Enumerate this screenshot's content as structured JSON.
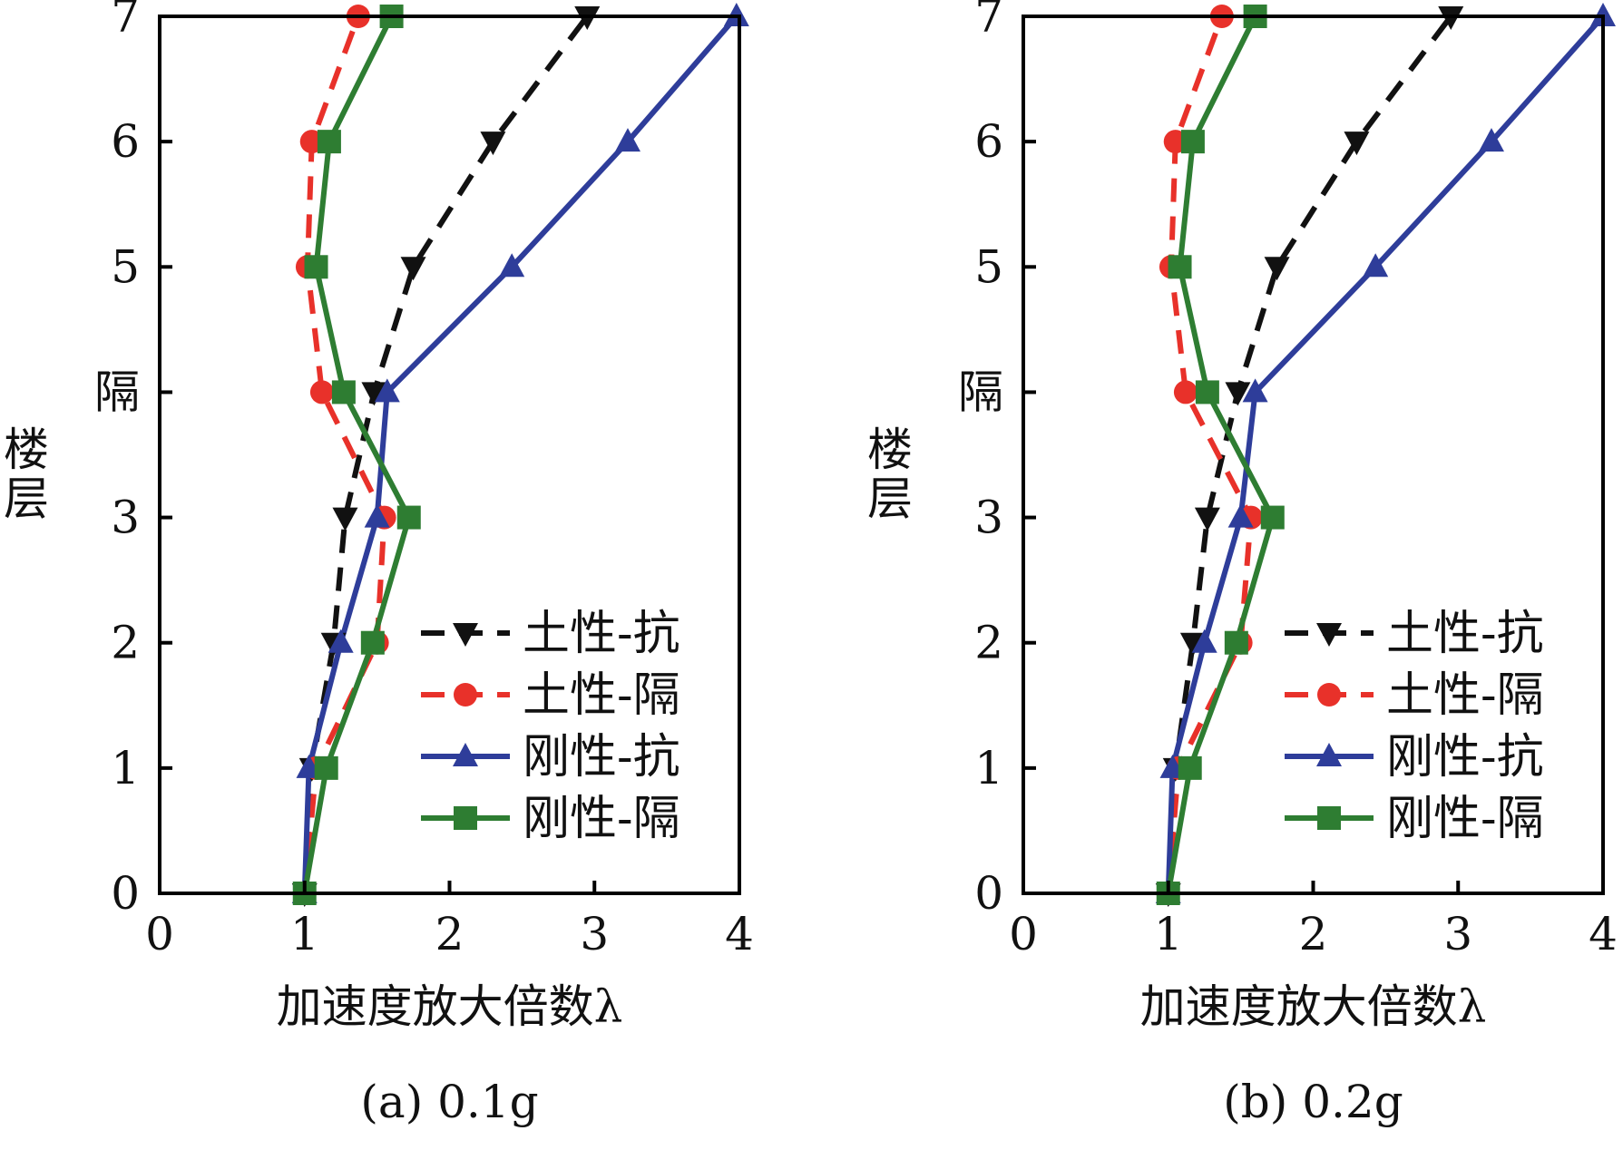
{
  "figure": {
    "captions": [
      "(a) 0.1g",
      "(b) 0.2g"
    ]
  },
  "colors": {
    "soil_fixed": "#111111",
    "soil_isolated": "#e8312a",
    "rigid_fixed": "#2e3d9a",
    "rigid_isolated": "#2e7d32"
  },
  "chart_data": [
    {
      "type": "line",
      "caption": "(a) 0.1g",
      "xlabel": "加速度放大倍数λ",
      "ylabel": "楼层",
      "xlim": [
        0,
        4
      ],
      "ylim": [
        0,
        7
      ],
      "xticks": [
        0,
        1,
        2,
        3,
        4
      ],
      "yticks": [
        0,
        1,
        2,
        3,
        4,
        5,
        6,
        7
      ],
      "ytick_labels": [
        "0",
        "1",
        "2",
        "3",
        "隔",
        "5",
        "6",
        "7"
      ],
      "y": [
        0,
        1,
        2,
        3,
        4,
        5,
        6,
        7
      ],
      "legend_position": "bottom-right",
      "grid": false,
      "series": [
        {
          "name": "土性-抗",
          "marker": "triangle-down",
          "line": "dashed",
          "color": "#111111",
          "x": [
            1.0,
            1.05,
            1.2,
            1.28,
            1.48,
            1.75,
            2.3,
            2.95
          ]
        },
        {
          "name": "土性-隔",
          "marker": "circle",
          "line": "dashed",
          "color": "#e8312a",
          "x": [
            1.0,
            1.08,
            1.5,
            1.55,
            1.12,
            1.02,
            1.05,
            1.37
          ]
        },
        {
          "name": "刚性-抗",
          "marker": "triangle-up",
          "line": "solid",
          "color": "#2e3d9a",
          "x": [
            1.0,
            1.03,
            1.25,
            1.5,
            1.57,
            2.43,
            3.23,
            3.98
          ]
        },
        {
          "name": "刚性-隔",
          "marker": "square",
          "line": "solid",
          "color": "#2e7d32",
          "x": [
            1.0,
            1.15,
            1.47,
            1.72,
            1.27,
            1.08,
            1.17,
            1.6
          ]
        }
      ]
    },
    {
      "type": "line",
      "caption": "(b) 0.2g",
      "xlabel": "加速度放大倍数λ",
      "ylabel": "楼层",
      "xlim": [
        0,
        4
      ],
      "ylim": [
        0,
        7
      ],
      "xticks": [
        0,
        1,
        2,
        3,
        4
      ],
      "yticks": [
        0,
        1,
        2,
        3,
        4,
        5,
        6,
        7
      ],
      "ytick_labels": [
        "0",
        "1",
        "2",
        "3",
        "隔",
        "5",
        "6",
        "7"
      ],
      "y": [
        0,
        1,
        2,
        3,
        4,
        5,
        6,
        7
      ],
      "legend_position": "bottom-right",
      "grid": false,
      "series": [
        {
          "name": "土性-抗",
          "marker": "triangle-down",
          "line": "dashed",
          "color": "#111111",
          "x": [
            1.0,
            1.05,
            1.17,
            1.27,
            1.48,
            1.75,
            2.3,
            2.95
          ]
        },
        {
          "name": "土性-隔",
          "marker": "circle",
          "line": "dashed",
          "color": "#e8312a",
          "x": [
            1.0,
            1.07,
            1.5,
            1.57,
            1.12,
            1.02,
            1.05,
            1.37
          ]
        },
        {
          "name": "刚性-抗",
          "marker": "triangle-up",
          "line": "solid",
          "color": "#2e3d9a",
          "x": [
            1.0,
            1.03,
            1.25,
            1.5,
            1.6,
            2.43,
            3.23,
            4.0
          ]
        },
        {
          "name": "刚性-隔",
          "marker": "square",
          "line": "solid",
          "color": "#2e7d32",
          "x": [
            1.0,
            1.15,
            1.47,
            1.72,
            1.27,
            1.08,
            1.17,
            1.6
          ]
        }
      ]
    }
  ]
}
